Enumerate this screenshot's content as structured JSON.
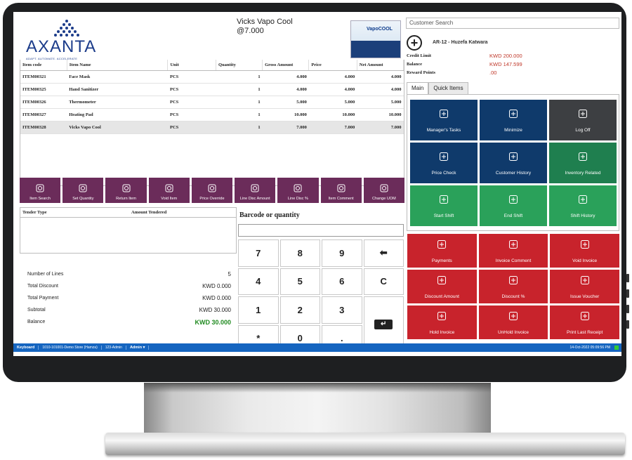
{
  "brand": {
    "name": "AXANTA",
    "tagline": "ADAPT. AUTOMATE. ACCELERATE"
  },
  "current_item": {
    "name": "Vicks Vapo Cool",
    "price_line": "@7.000",
    "image_label": "VapoCOOL"
  },
  "items_table": {
    "columns": [
      "Item code",
      "Item Name",
      "Unit",
      "Quantity",
      "Gross Amount",
      "Price",
      "Net Amount"
    ],
    "rows": [
      [
        "ITEM00321",
        "Face Mask",
        "PCS",
        "1",
        "4.000",
        "4.000",
        "4.000"
      ],
      [
        "ITEM00325",
        "Hand Sanitizer",
        "PCS",
        "1",
        "4.000",
        "4.000",
        "4.000"
      ],
      [
        "ITEM00326",
        "Thermometer",
        "PCS",
        "1",
        "5.000",
        "5.000",
        "5.000"
      ],
      [
        "ITEM00327",
        "Heating Pad",
        "PCS",
        "1",
        "10.000",
        "10.000",
        "10.000"
      ],
      [
        "ITEM00328",
        "Vicks Vapo Cool",
        "PCS",
        "1",
        "7.000",
        "7.000",
        "7.000"
      ]
    ],
    "selected_row": 4
  },
  "action_bar": [
    {
      "label": "Item Search",
      "icon": "item-search-icon"
    },
    {
      "label": "Set Quantity",
      "icon": "set-quantity-icon"
    },
    {
      "label": "Return Item",
      "icon": "return-item-icon"
    },
    {
      "label": "Void Item",
      "icon": "void-item-icon"
    },
    {
      "label": "Price Override",
      "icon": "price-override-icon"
    },
    {
      "label": "Line Disc Amount",
      "icon": "line-disc-amount-icon"
    },
    {
      "label": "Line Disc %",
      "icon": "line-disc-percent-icon"
    },
    {
      "label": "Item Comment",
      "icon": "item-comment-icon"
    },
    {
      "label": "Change UOM",
      "icon": "change-uom-icon"
    }
  ],
  "tender": {
    "col_type": "Tender Type",
    "col_amount": "Amount Tendered"
  },
  "totals": {
    "lines_label": "Number of Lines",
    "lines_value": "5",
    "discount_label": "Total Discount",
    "discount_value": "KWD 0.000",
    "payment_label": "Total Payment",
    "payment_value": "KWD 0.000",
    "subtotal_label": "Subtotal",
    "subtotal_value": "KWD 30.000",
    "balance_label": "Balance",
    "balance_value": "KWD 30.000"
  },
  "keypad": {
    "label": "Barcode or quantity",
    "input_value": "",
    "keys": [
      "7",
      "8",
      "9",
      "⬅",
      "4",
      "5",
      "6",
      "C",
      "1",
      "2",
      "3",
      "*",
      "0",
      "."
    ],
    "enter_label": "↵"
  },
  "customer": {
    "search_placeholder": "Customer Search",
    "name": "AR-12 - Huzefa Katwara",
    "credit_limit_label": "Credit Limit",
    "credit_limit": "KWD 200.000",
    "balance_label": "Balance",
    "balance": "KWD 147.599",
    "reward_label": "Reward Points",
    "reward": ".00"
  },
  "tabs": [
    "Main",
    "Quick Items"
  ],
  "main_tiles": [
    {
      "label": "Manager's Tasks",
      "color": "#0f3a6b"
    },
    {
      "label": "Minimize",
      "color": "#0f3a6b"
    },
    {
      "label": "Log Off",
      "color": "#3d3f42"
    },
    {
      "label": "Price Check",
      "color": "#0f3a6b"
    },
    {
      "label": "Customer History",
      "color": "#0f3a6b"
    },
    {
      "label": "Inventory Related",
      "color": "#1f7f4f"
    },
    {
      "label": "Start Shift",
      "color": "#2aa15a"
    },
    {
      "label": "End Shift",
      "color": "#2aa15a"
    },
    {
      "label": "Shift History",
      "color": "#2aa15a"
    }
  ],
  "red_tiles": [
    {
      "label": "Payments"
    },
    {
      "label": "Invoice Comment"
    },
    {
      "label": "Void Invoice"
    },
    {
      "label": "Discount Amount"
    },
    {
      "label": "Discount %"
    },
    {
      "label": "Issue Voucher"
    },
    {
      "label": "Hold Invoice"
    },
    {
      "label": "UnHold Invoice"
    },
    {
      "label": "Print Last Receipt"
    }
  ],
  "statusbar": {
    "keyboard": "Keyboard",
    "store": "1010-101001-Demo Store (Hamza)",
    "user": "123-Admin",
    "role": "Admin ▾",
    "datetime": "14-Oct-2022 05:09:56 PM"
  }
}
